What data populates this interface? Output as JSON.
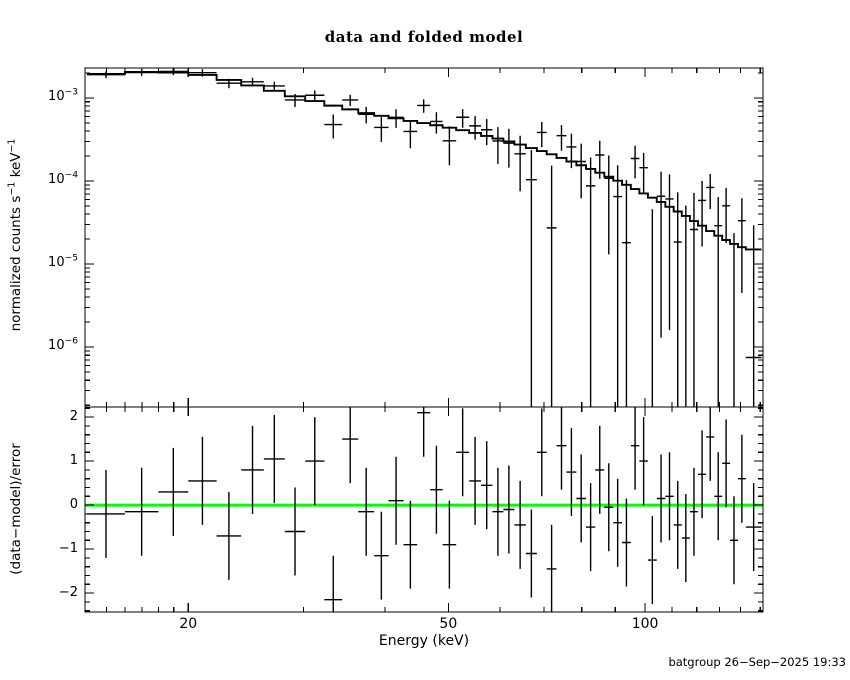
{
  "title": "data and folded model",
  "footer": "batgroup 26−Sep−2025 19:33",
  "colors": {
    "foreground": "#000000",
    "zero_line": "#00ff00",
    "background": "#ffffff"
  },
  "chart_data": {
    "type": "spectrum+residuals",
    "title": "data and folded model",
    "x_axis": {
      "label": "Energy (keV)",
      "scale": "log",
      "range": [
        13.9,
        151.5
      ],
      "major_ticks": [
        20,
        50,
        100
      ],
      "minor_ticks": [
        15,
        16,
        17,
        18,
        19,
        30,
        40,
        60,
        70,
        80,
        90,
        110,
        120,
        130,
        140,
        150
      ]
    },
    "top_panel": {
      "ylabel_parts": [
        {
          "t": "normalized counts s"
        },
        {
          "t": "−1",
          "sup": true
        },
        {
          "t": " keV"
        },
        {
          "t": "−1",
          "sup": true
        }
      ],
      "scale": "log",
      "range": [
        1.9e-07,
        0.0023
      ],
      "tick_base": "10",
      "tick_exponents": [
        -3,
        -4,
        -5,
        -6
      ]
    },
    "bottom_panel": {
      "ylabel": "(data−model)/error",
      "scale": "linear",
      "range": [
        -2.43,
        2.23
      ],
      "major_ticks": [
        2,
        1,
        0,
        -1,
        -2
      ],
      "minor_step": 0.2,
      "zero_line": 0,
      "zero_line_color": "#00ff00",
      "resid_err": 1.0
    },
    "bins": {
      "edges_kev": [
        14.0,
        16.0,
        18.0,
        20.0,
        22.1,
        24.1,
        26.1,
        28.1,
        30.2,
        32.3,
        34.4,
        36.4,
        38.5,
        40.5,
        42.7,
        44.8,
        46.9,
        49.0,
        51.4,
        53.8,
        56.1,
        58.4,
        60.7,
        63.1,
        65.7,
        68.3,
        70.7,
        73.2,
        75.8,
        78.5,
        81.2,
        83.9,
        86.6,
        89.4,
        92.2,
        95.1,
        98.0,
        101.0,
        104.2,
        107.4,
        110.6,
        113.8,
        117.1,
        120.5,
        124.0,
        127.6,
        131.2,
        134.9,
        138.7,
        142.6,
        150.7
      ],
      "model": [
        0.00195,
        0.00206,
        0.00203,
        0.0019,
        0.00165,
        0.00142,
        0.00122,
        0.00105,
        0.00092,
        0.00081,
        0.00073,
        0.00066,
        0.00061,
        0.00057,
        0.00053,
        0.0005,
        0.00047,
        0.00044,
        0.00041,
        0.00038,
        0.00035,
        0.000325,
        0.0003,
        0.000275,
        0.00025,
        0.00023,
        0.00021,
        0.00019,
        0.000172,
        0.000155,
        0.00014,
        0.000126,
        0.000113,
        0.000101,
        9e-05,
        8e-05,
        7.1e-05,
        6.3e-05,
        5.6e-05,
        4.9e-05,
        4.3e-05,
        3.8e-05,
        3.3e-05,
        2.9e-05,
        2.5e-05,
        2.2e-05,
        1.95e-05,
        1.75e-05,
        1.6e-05,
        1.5e-05
      ],
      "data": [
        0.00191,
        0.00203,
        0.00209,
        0.00202,
        0.00151,
        0.00157,
        0.0014,
        0.000949,
        0.00108,
        0.000479,
        0.000949,
        0.000638,
        0.000442,
        0.000585,
        0.000396,
        0.000815,
        0.000523,
        0.000305,
        0.000587,
        0.000462,
        0.000415,
        0.000304,
        0.000286,
        0.000213,
        0.000104,
        0.000385,
        2.73e-05,
        0.000352,
        0.000258,
        0.000172,
        8.75e-05,
        0.000206,
        0.000108,
        6.5e-05,
        1.81e-05,
        0.000187,
        0.000145,
        -2.29e-05,
        6.57e-05,
        6.09e-05,
        1.84e-05,
        9.5e-08,
        2.61e-05,
        5.84e-05,
        8.39e-05,
        2.9e-05,
        5.03e-05,
        -6.7e-06,
        3.33e-05,
        7.5e-07
      ],
      "data_err": [
        0.000176,
        0.000185,
        0.000203,
        0.000209,
        0.000198,
        0.000185,
        0.000171,
        0.000168,
        0.000156,
        0.000154,
        0.000146,
        0.000145,
        0.000146,
        0.000148,
        0.000148,
        0.00015,
        0.00015,
        0.00015,
        0.000148,
        0.000148,
        0.000144,
        0.000143,
        0.000141,
        0.000138,
        0.000133,
        0.000129,
        0.000126,
        0.00012,
        0.000115,
        0.00011,
        0.000105,
        9.95e-05,
        9.49e-05,
        8.99e-05,
        8.46e-05,
        7.92e-05,
        7.38e-05,
        6.87e-05,
        6.44e-05,
        5.93e-05,
        5.46e-05,
        5.05e-05,
        4.59e-05,
        4.21e-05,
        3.8e-05,
        3.5e-05,
        3.24e-05,
        3.03e-05,
        2.88e-05,
        2.85e-05
      ],
      "resid": [
        -0.2,
        -0.15,
        0.3,
        0.55,
        -0.7,
        0.8,
        1.05,
        -0.6,
        1.0,
        -2.15,
        1.5,
        -0.15,
        -1.15,
        0.1,
        -0.9,
        2.1,
        0.35,
        -0.9,
        1.2,
        0.55,
        0.45,
        -0.15,
        -0.1,
        -0.45,
        -1.1,
        1.2,
        -1.45,
        1.35,
        0.75,
        0.15,
        -0.5,
        0.8,
        -0.05,
        -0.4,
        -0.85,
        1.35,
        1.0,
        -1.25,
        0.15,
        0.2,
        -0.45,
        -0.75,
        -0.15,
        0.7,
        1.55,
        0.2,
        0.95,
        -0.8,
        0.6,
        -0.5
      ]
    }
  }
}
